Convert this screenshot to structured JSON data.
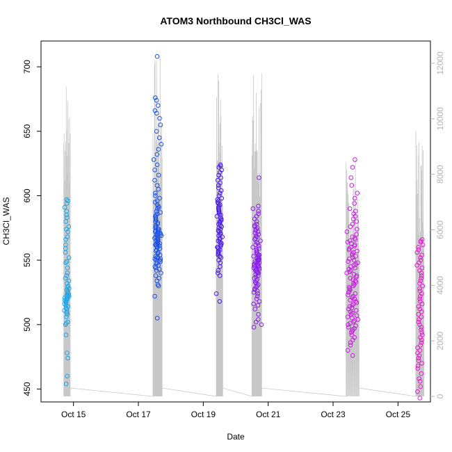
{
  "chart_data": {
    "type": "scatter",
    "title": "ATOM3 Northbound CH3Cl_WAS",
    "xlabel": "Date",
    "ylabel": "CH3Cl_WAS",
    "xlim": [
      "2016-10-14",
      "2016-10-26"
    ],
    "ylim": [
      440,
      720
    ],
    "y2lim": [
      -200,
      12800
    ],
    "x_ticks": [
      {
        "date": "2016-10-15",
        "label": "Oct 15"
      },
      {
        "date": "2016-10-17",
        "label": "Oct 17"
      },
      {
        "date": "2016-10-19",
        "label": "Oct 19"
      },
      {
        "date": "2016-10-21",
        "label": "Oct 21"
      },
      {
        "date": "2016-10-23",
        "label": "Oct 23"
      },
      {
        "date": "2016-10-25",
        "label": "Oct 25"
      }
    ],
    "y_ticks": [
      "450",
      "500",
      "550",
      "600",
      "650",
      "700"
    ],
    "y2_ticks": [
      "0",
      "2000",
      "4000",
      "6000",
      "8000",
      "10000",
      "12000"
    ],
    "grid": false,
    "secondary_series_color": "#c8c8c8",
    "point_color_scale": [
      "#1e9ae6",
      "#1a47e0",
      "#5a12e8",
      "#9a20e8",
      "#d81cdc",
      "#ee1ccc"
    ],
    "clusters": [
      {
        "start": "2016-10-14T16:48",
        "end": "2016-10-14T21:36",
        "color": "#1ea5e6",
        "values": [
          454,
          460,
          474,
          478,
          492,
          500,
          501,
          502,
          506,
          508,
          509,
          510,
          511,
          512,
          513,
          514,
          515,
          516,
          517,
          518,
          519,
          519,
          520,
          520,
          521,
          521,
          522,
          522,
          523,
          523,
          524,
          525,
          526,
          527,
          528,
          529,
          530,
          532,
          534,
          536,
          538,
          540,
          544,
          548,
          549,
          552,
          556,
          559,
          562,
          566,
          568,
          572,
          574,
          576,
          580,
          583,
          585,
          588,
          591,
          594,
          596,
          597
        ]
      },
      {
        "start": "2016-10-17T10:48",
        "end": "2016-10-17T17:36",
        "color": "#1a50e6",
        "values": [
          505,
          522,
          530,
          531,
          534,
          536,
          538,
          540,
          542,
          543,
          544,
          545,
          546,
          547,
          548,
          549,
          550,
          550,
          551,
          551,
          552,
          552,
          553,
          554,
          555,
          556,
          557,
          558,
          559,
          560,
          560,
          561,
          561,
          562,
          562,
          563,
          563,
          564,
          564,
          565,
          565,
          566,
          566,
          567,
          567,
          568,
          568,
          569,
          569,
          570,
          570,
          571,
          571,
          572,
          572,
          573,
          573,
          574,
          574,
          575,
          576,
          577,
          578,
          579,
          580,
          581,
          582,
          583,
          584,
          585,
          586,
          587,
          588,
          590,
          591,
          592,
          593,
          595,
          596,
          598,
          600,
          602,
          605,
          608,
          612,
          616,
          620,
          624,
          628,
          632,
          636,
          640,
          645,
          650,
          655,
          660,
          664,
          666,
          670,
          674,
          676,
          708
        ]
      },
      {
        "start": "2016-10-19T09:36",
        "end": "2016-10-19T14:24",
        "color": "#4a18e6",
        "values": [
          518,
          524,
          538,
          540,
          542,
          545,
          548,
          550,
          552,
          553,
          554,
          555,
          556,
          557,
          558,
          559,
          560,
          560,
          561,
          562,
          563,
          564,
          565,
          566,
          567,
          568,
          569,
          570,
          571,
          572,
          573,
          574,
          575,
          576,
          577,
          578,
          579,
          580,
          581,
          582,
          583,
          584,
          585,
          586,
          587,
          588,
          589,
          590,
          591,
          592,
          593,
          594,
          595,
          596,
          597,
          598,
          600,
          602,
          604,
          606,
          608,
          610,
          612,
          614,
          616,
          618,
          620,
          622,
          623,
          624
        ]
      },
      {
        "start": "2016-10-20T12:00",
        "end": "2016-10-20T19:12",
        "color": "#8a1ee8",
        "values": [
          498,
          500,
          502,
          504,
          508,
          512,
          515,
          516,
          518,
          520,
          522,
          524,
          525,
          526,
          527,
          528,
          529,
          530,
          531,
          532,
          533,
          534,
          535,
          536,
          537,
          538,
          539,
          540,
          540,
          541,
          541,
          542,
          542,
          543,
          543,
          544,
          544,
          545,
          545,
          546,
          546,
          547,
          547,
          548,
          548,
          549,
          549,
          550,
          550,
          551,
          551,
          552,
          552,
          553,
          553,
          554,
          554,
          555,
          556,
          557,
          558,
          559,
          560,
          561,
          562,
          563,
          564,
          565,
          566,
          567,
          568,
          569,
          570,
          571,
          572,
          573,
          574,
          575,
          576,
          577,
          578,
          580,
          582,
          584,
          586,
          588,
          590,
          592,
          614
        ]
      },
      {
        "start": "2016-10-23T09:36",
        "end": "2016-10-23T19:12",
        "color": "#c81ee0",
        "values": [
          476,
          480,
          484,
          486,
          488,
          490,
          492,
          494,
          495,
          496,
          497,
          498,
          499,
          500,
          501,
          502,
          503,
          504,
          505,
          506,
          507,
          508,
          509,
          510,
          511,
          512,
          513,
          514,
          515,
          516,
          517,
          518,
          519,
          520,
          521,
          522,
          523,
          524,
          525,
          526,
          527,
          528,
          529,
          530,
          531,
          532,
          533,
          534,
          535,
          536,
          537,
          538,
          539,
          540,
          541,
          542,
          543,
          544,
          545,
          546,
          547,
          548,
          549,
          550,
          551,
          552,
          553,
          554,
          555,
          556,
          557,
          558,
          559,
          560,
          561,
          562,
          563,
          564,
          565,
          566,
          567,
          568,
          570,
          572,
          574,
          576,
          578,
          580,
          582,
          584,
          586,
          588,
          590,
          594,
          598,
          602,
          608,
          614,
          622,
          628
        ]
      },
      {
        "start": "2016-10-25T13:12",
        "end": "2016-10-25T19:12",
        "color": "#e61ccc",
        "values": [
          443,
          448,
          452,
          456,
          458,
          462,
          466,
          468,
          470,
          472,
          474,
          476,
          478,
          480,
          482,
          484,
          486,
          488,
          490,
          492,
          494,
          496,
          498,
          500,
          502,
          504,
          506,
          508,
          510,
          512,
          514,
          516,
          518,
          520,
          522,
          524,
          526,
          528,
          530,
          532,
          534,
          536,
          538,
          540,
          542,
          544,
          546,
          548,
          550,
          552,
          554,
          556,
          558,
          560,
          562,
          564,
          565,
          566
        ]
      }
    ]
  }
}
